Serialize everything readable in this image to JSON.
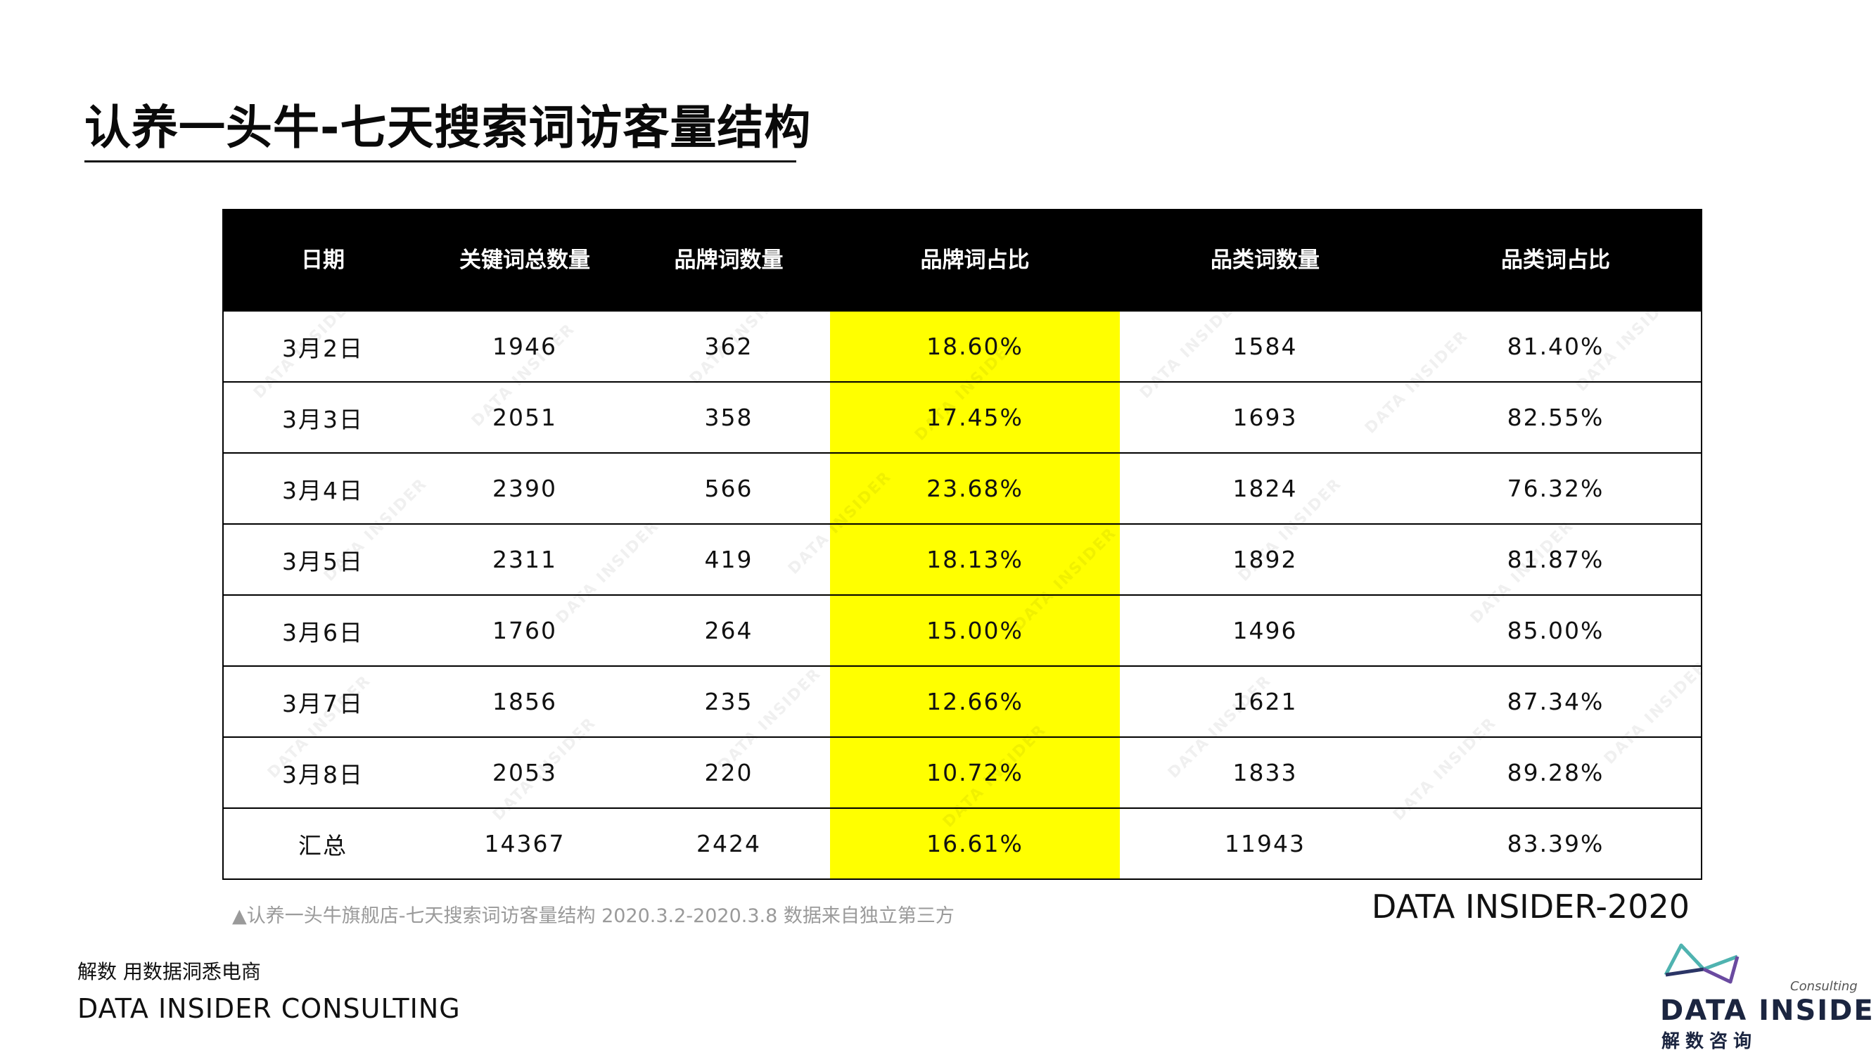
{
  "page": {
    "title": "认养一头牛-七天搜索词访客量结构",
    "source_note": "▲认养一头牛旗舰店-七天搜索词访客量结构 2020.3.2-2020.3.8 数据来自独立第三方",
    "brand_year": "DATA INSIDER-2020",
    "watermark": "DATA INSIDER"
  },
  "table": {
    "headers": [
      "日期",
      "关键词总数量",
      "品牌词数量",
      "品牌词占比",
      "品类词数量",
      "品类词占比"
    ],
    "highlight_color": "#ffff00",
    "rows": [
      [
        "3月2日",
        "1946",
        "362",
        "18.60%",
        "1584",
        "81.40%"
      ],
      [
        "3月3日",
        "2051",
        "358",
        "17.45%",
        "1693",
        "82.55%"
      ],
      [
        "3月4日",
        "2390",
        "566",
        "23.68%",
        "1824",
        "76.32%"
      ],
      [
        "3月5日",
        "2311",
        "419",
        "18.13%",
        "1892",
        "81.87%"
      ],
      [
        "3月6日",
        "1760",
        "264",
        "15.00%",
        "1496",
        "85.00%"
      ],
      [
        "3月7日",
        "1856",
        "235",
        "12.66%",
        "1621",
        "87.34%"
      ],
      [
        "3月8日",
        "2053",
        "220",
        "10.72%",
        "1833",
        "89.28%"
      ],
      [
        "汇总",
        "14367",
        "2424",
        "16.61%",
        "11943",
        "83.39%"
      ]
    ]
  },
  "footer": {
    "slogan": "解数 用数据洞悉电商",
    "company": "DATA INSIDER CONSULTING"
  },
  "logo": {
    "consulting": "Consulting",
    "name": "DATA INSIDER",
    "cn": "解数咨询",
    "colors": {
      "teal": "#4fb3b0",
      "navy": "#2b3566",
      "purple": "#6a4aa0"
    }
  }
}
